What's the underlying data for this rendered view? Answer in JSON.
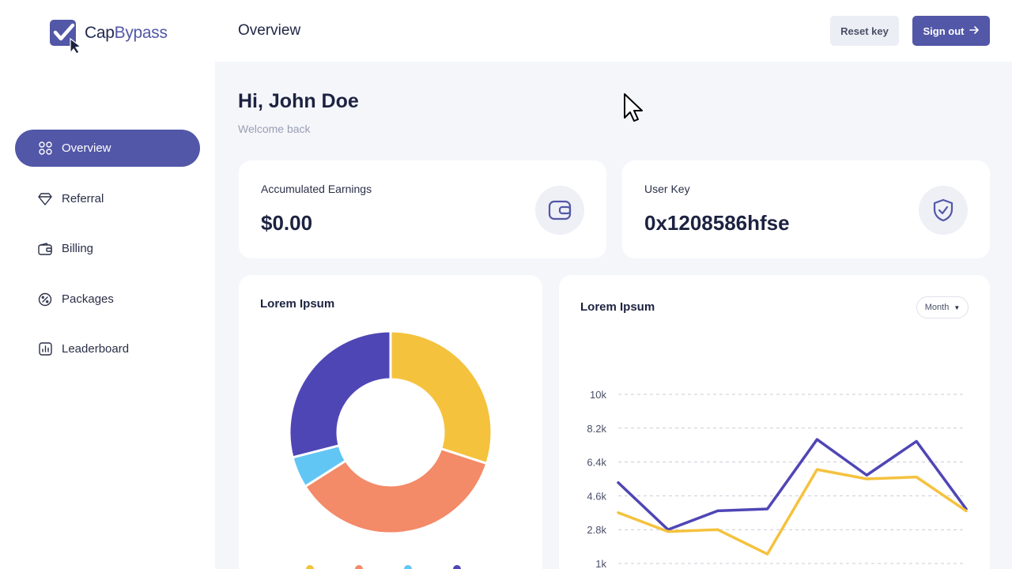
{
  "app": {
    "logo_text_a": "Cap",
    "logo_text_b": "Bypass",
    "logo_icon": "check-cursor-icon",
    "brand_color": "#5257a7"
  },
  "header": {
    "title": "Overview",
    "reset_label": "Reset key",
    "signout_label": "Sign out",
    "signout_icon": "arrow-right-icon"
  },
  "sidebar": {
    "items": [
      {
        "label": "Overview",
        "icon": "grid-icon",
        "active": true
      },
      {
        "label": "Referral",
        "icon": "diamond-icon",
        "active": false
      },
      {
        "label": "Billing",
        "icon": "wallet-icon",
        "active": false
      },
      {
        "label": "Packages",
        "icon": "percent-badge-icon",
        "active": false
      },
      {
        "label": "Leaderboard",
        "icon": "chart-icon",
        "active": false
      }
    ]
  },
  "welcome": {
    "greeting": "Hi, John Doe",
    "subtitle": "Welcome back"
  },
  "stats": {
    "earnings_label": "Accumulated Earnings",
    "earnings_value": "$0.00",
    "earnings_icon": "wallet-icon",
    "key_label": "User Key",
    "key_value": "0x1208586hfse",
    "key_icon": "shield-check-icon"
  },
  "donut_card": {
    "title": "Lorem Ipsum"
  },
  "line_card": {
    "title": "Lorem Ipsum",
    "period": "Month"
  },
  "chart_data": [
    {
      "type": "pie",
      "donut": true,
      "slices": [
        {
          "value": 30,
          "color": "#f5c23e"
        },
        {
          "value": 36,
          "color": "#f38a68"
        },
        {
          "value": 5,
          "color": "#62c6f5"
        },
        {
          "value": 29,
          "color": "#4f46b5"
        }
      ]
    },
    {
      "type": "line",
      "yticks": [
        "10k",
        "8.2k",
        "6.4k",
        "4.6k",
        "2.8k",
        "1k"
      ],
      "ylim": [
        1,
        10
      ],
      "grid": true,
      "x": [
        1,
        2,
        3,
        4,
        5,
        6,
        7,
        8
      ],
      "series": [
        {
          "color": "#4f46b5",
          "values": [
            5.3,
            2.8,
            3.8,
            3.9,
            7.6,
            5.7,
            7.5,
            3.9
          ]
        },
        {
          "color": "#f5c23e",
          "values": [
            3.7,
            2.7,
            2.8,
            1.5,
            6.0,
            5.5,
            5.6,
            3.8
          ]
        }
      ]
    }
  ]
}
